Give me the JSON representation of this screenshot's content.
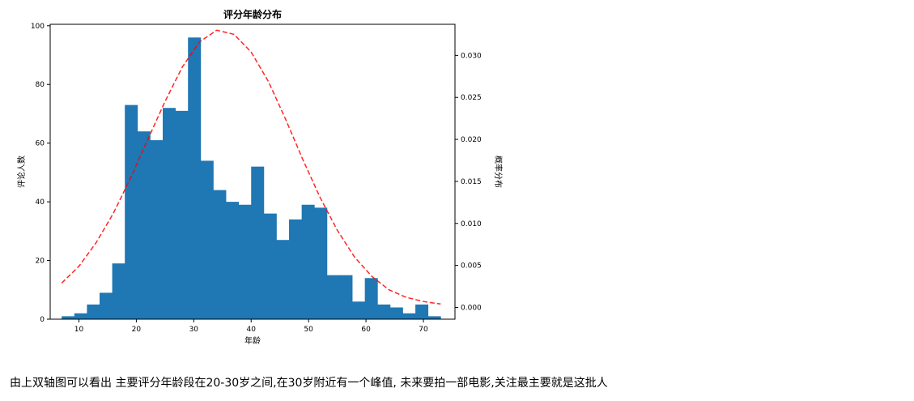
{
  "chart_data": {
    "type": "bar",
    "title": "评分年龄分布",
    "xlabel": "年龄",
    "ylabel": "评论人数",
    "ylabel_right": "概率分布",
    "xlim": [
      5,
      75.5
    ],
    "ylim": [
      0,
      100.5
    ],
    "ylim_right": [
      -0.0014,
      0.0337
    ],
    "x_ticks": [
      10,
      20,
      30,
      40,
      50,
      60,
      70
    ],
    "y_ticks": [
      0,
      20,
      40,
      60,
      80,
      100
    ],
    "y_ticks_right": [
      0.0,
      0.005,
      0.01,
      0.015,
      0.02,
      0.025,
      0.03
    ],
    "y_tick_labels_right": [
      "0.000",
      "0.005",
      "0.010",
      "0.015",
      "0.020",
      "0.025",
      "0.030"
    ],
    "bin_edges": [
      7,
      9.2,
      11.4,
      13.6,
      15.8,
      18,
      20.2,
      22.4,
      24.6,
      26.8,
      29,
      31.2,
      33.4,
      35.6,
      37.8,
      40,
      42.2,
      44.4,
      46.6,
      48.8,
      51,
      53.2,
      55.4,
      57.6,
      59.8,
      62,
      64.2,
      66.4,
      68.6,
      70.8,
      73
    ],
    "values": [
      1,
      2,
      5,
      9,
      19,
      73,
      64,
      61,
      72,
      71,
      96,
      54,
      44,
      40,
      39,
      52,
      36,
      27,
      34,
      39,
      38,
      15,
      15,
      6,
      14,
      5,
      4,
      2,
      5,
      1
    ],
    "bar_color": "#1f77b4",
    "curve": {
      "style": "dashed",
      "color": "#ff0000",
      "x": [
        7,
        10,
        13,
        16,
        19,
        22,
        25,
        28,
        31,
        34,
        37,
        40,
        43,
        46,
        49,
        52,
        55,
        58,
        61,
        64,
        67,
        70,
        73
      ],
      "y": [
        0.0029,
        0.0049,
        0.0077,
        0.0112,
        0.0154,
        0.02,
        0.0245,
        0.0286,
        0.0316,
        0.033,
        0.0325,
        0.0304,
        0.0269,
        0.0224,
        0.0176,
        0.0131,
        0.0092,
        0.006,
        0.0037,
        0.0021,
        0.0012,
        0.0007,
        0.0004
      ]
    },
    "grid": false
  },
  "caption": "由上双轴图可以看出 主要评分年龄段在20-30岁之间,在30岁附近有一个峰值, 未来要拍一部电影,关注最主要就是这批人"
}
